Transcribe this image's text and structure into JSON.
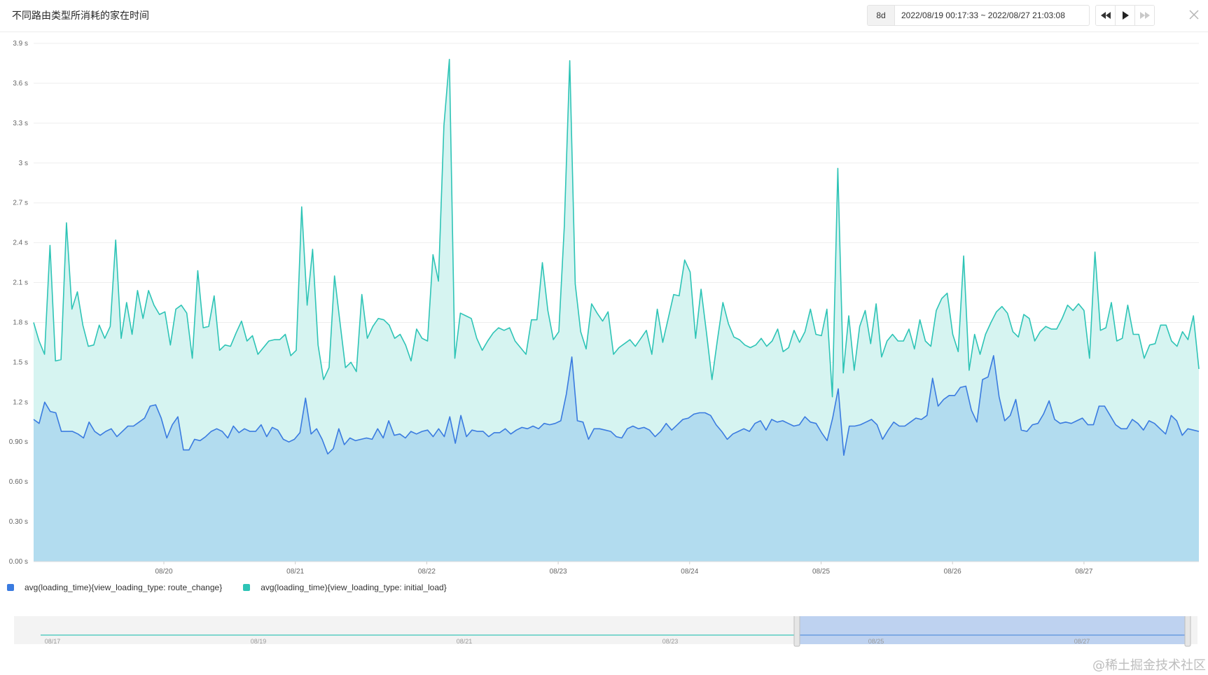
{
  "header": {
    "title": "不同路由类型所消耗的家在时间",
    "range_preset": "8d",
    "range_text": "2022/08/19 00:17:33 ~ 2022/08/27 21:03:08"
  },
  "colors": {
    "route_change_line": "#3a7be0",
    "route_change_fill": "#b2dcef",
    "initial_load_line": "#2ec4b6",
    "initial_load_fill": "#d6f4f1",
    "brush": "#b8cef0"
  },
  "icons": {
    "rewind": "rewind-icon",
    "play": "play-icon",
    "forward": "fast-forward-icon",
    "close": "close-icon"
  },
  "legend": [
    {
      "label": "avg(loading_time){view_loading_type: route_change}",
      "color": "#3a7be0"
    },
    {
      "label": "avg(loading_time){view_loading_type: initial_load}",
      "color": "#2ec4b6"
    }
  ],
  "overview": {
    "ticks": [
      "08/17",
      "08/19",
      "08/21",
      "08/23",
      "08/25",
      "08/27"
    ],
    "selected_range": [
      "08/19 00:17",
      "08/27 21:03"
    ]
  },
  "watermark": "@稀土掘金技术社区",
  "chart_data": {
    "type": "area",
    "title": "不同路由类型所消耗的家在时间",
    "xlabel": "",
    "ylabel": "",
    "x_range": [
      "2022/08/19 00:17:33",
      "2022/08/27 21:03:08"
    ],
    "x_ticks": [
      "08/20",
      "08/21",
      "08/22",
      "08/23",
      "08/24",
      "08/25",
      "08/26",
      "08/27"
    ],
    "y_ticks": [
      "0.00 s",
      "0.30 s",
      "0.60 s",
      "0.90 s",
      "1.2 s",
      "1.5 s",
      "1.8 s",
      "2.1 s",
      "2.4 s",
      "2.7 s",
      "3 s",
      "3.3 s",
      "3.6 s",
      "3.9 s"
    ],
    "ylim": [
      0,
      3.9
    ],
    "grid": true,
    "legend_position": "bottom-left",
    "series": [
      {
        "name": "avg(loading_time){view_loading_type: initial_load}",
        "values": [
          1.8,
          1.66,
          1.56,
          2.38,
          1.51,
          1.52,
          2.55,
          1.9,
          2.03,
          1.78,
          1.62,
          1.63,
          1.78,
          1.68,
          1.77,
          2.42,
          1.68,
          1.95,
          1.71,
          2.04,
          1.83,
          2.04,
          1.93,
          1.86,
          1.88,
          1.63,
          1.9,
          1.93,
          1.87,
          1.53,
          2.19,
          1.76,
          1.77,
          2.0,
          1.59,
          1.63,
          1.62,
          1.72,
          1.81,
          1.66,
          1.7,
          1.56,
          1.61,
          1.66,
          1.67,
          1.67,
          1.71,
          1.55,
          1.59,
          2.67,
          1.93,
          2.35,
          1.63,
          1.37,
          1.46,
          2.15,
          1.8,
          1.46,
          1.5,
          1.43,
          2.01,
          1.68,
          1.77,
          1.83,
          1.82,
          1.78,
          1.68,
          1.71,
          1.63,
          1.51,
          1.75,
          1.68,
          1.66,
          2.31,
          2.11,
          3.28,
          3.78,
          1.53,
          1.87,
          1.85,
          1.83,
          1.68,
          1.59,
          1.66,
          1.72,
          1.76,
          1.74,
          1.76,
          1.66,
          1.61,
          1.56,
          1.82,
          1.82,
          2.25,
          1.89,
          1.67,
          1.73,
          2.52,
          3.77,
          2.09,
          1.73,
          1.6,
          1.94,
          1.87,
          1.81,
          1.88,
          1.56,
          1.61,
          1.64,
          1.67,
          1.62,
          1.68,
          1.74,
          1.56,
          1.9,
          1.65,
          1.83,
          2.01,
          2.0,
          2.27,
          2.18,
          1.68,
          2.05,
          1.72,
          1.37,
          1.67,
          1.95,
          1.79,
          1.69,
          1.67,
          1.63,
          1.61,
          1.63,
          1.68,
          1.62,
          1.66,
          1.75,
          1.58,
          1.61,
          1.74,
          1.65,
          1.73,
          1.9,
          1.71,
          1.7,
          1.9,
          1.24,
          2.96,
          1.42,
          1.85,
          1.44,
          1.77,
          1.89,
          1.64,
          1.94,
          1.54,
          1.66,
          1.71,
          1.66,
          1.66,
          1.75,
          1.6,
          1.82,
          1.66,
          1.62,
          1.89,
          1.98,
          2.02,
          1.71,
          1.58,
          2.3,
          1.44,
          1.71,
          1.56,
          1.71,
          1.8,
          1.88,
          1.92,
          1.87,
          1.73,
          1.69,
          1.86,
          1.83,
          1.66,
          1.73,
          1.77,
          1.75,
          1.75,
          1.83,
          1.93,
          1.89,
          1.94,
          1.89,
          1.53,
          2.33,
          1.74,
          1.76,
          1.95,
          1.66,
          1.68,
          1.93,
          1.71,
          1.71,
          1.53,
          1.63,
          1.64,
          1.78,
          1.78,
          1.66,
          1.62,
          1.73,
          1.67,
          1.85,
          1.45
        ]
      },
      {
        "name": "avg(loading_time){view_loading_type: route_change}",
        "values": [
          1.07,
          1.04,
          1.2,
          1.13,
          1.12,
          0.98,
          0.98,
          0.98,
          0.96,
          0.93,
          1.05,
          0.98,
          0.95,
          0.98,
          1.0,
          0.94,
          0.98,
          1.02,
          1.02,
          1.05,
          1.08,
          1.17,
          1.18,
          1.08,
          0.93,
          1.03,
          1.09,
          0.84,
          0.84,
          0.92,
          0.91,
          0.94,
          0.98,
          1.0,
          0.98,
          0.93,
          1.02,
          0.97,
          1.0,
          0.98,
          0.98,
          1.03,
          0.94,
          1.01,
          0.99,
          0.92,
          0.9,
          0.92,
          0.97,
          1.23,
          0.96,
          1.0,
          0.92,
          0.81,
          0.85,
          1.0,
          0.88,
          0.93,
          0.91,
          0.92,
          0.93,
          0.92,
          1.0,
          0.93,
          1.06,
          0.95,
          0.96,
          0.93,
          0.98,
          0.96,
          0.98,
          0.99,
          0.94,
          1.0,
          0.94,
          1.09,
          0.89,
          1.1,
          0.94,
          0.99,
          0.98,
          0.98,
          0.94,
          0.97,
          0.97,
          1.0,
          0.96,
          0.99,
          1.01,
          1.0,
          1.02,
          1.0,
          1.04,
          1.03,
          1.04,
          1.06,
          1.26,
          1.54,
          1.06,
          1.05,
          0.92,
          1.0,
          1.0,
          0.99,
          0.98,
          0.94,
          0.93,
          1.0,
          1.02,
          1.0,
          1.01,
          0.99,
          0.94,
          0.98,
          1.04,
          0.99,
          1.03,
          1.07,
          1.08,
          1.11,
          1.12,
          1.12,
          1.1,
          1.03,
          0.98,
          0.92,
          0.96,
          0.98,
          1.0,
          0.98,
          1.04,
          1.06,
          0.99,
          1.07,
          1.05,
          1.06,
          1.04,
          1.02,
          1.03,
          1.09,
          1.05,
          1.04,
          0.97,
          0.91,
          1.08,
          1.3,
          0.8,
          1.02,
          1.02,
          1.03,
          1.05,
          1.07,
          1.03,
          0.92,
          0.99,
          1.05,
          1.02,
          1.02,
          1.05,
          1.08,
          1.07,
          1.1,
          1.38,
          1.17,
          1.22,
          1.25,
          1.25,
          1.31,
          1.32,
          1.14,
          1.05,
          1.37,
          1.39,
          1.55,
          1.24,
          1.06,
          1.1,
          1.22,
          0.99,
          0.98,
          1.03,
          1.04,
          1.11,
          1.21,
          1.07,
          1.04,
          1.05,
          1.04,
          1.06,
          1.08,
          1.03,
          1.03,
          1.17,
          1.17,
          1.1,
          1.03,
          1.0,
          1.0,
          1.07,
          1.04,
          0.99,
          1.06,
          1.04,
          1.0,
          0.96,
          1.1,
          1.06,
          0.95,
          1.0,
          0.99,
          0.98
        ]
      }
    ]
  }
}
